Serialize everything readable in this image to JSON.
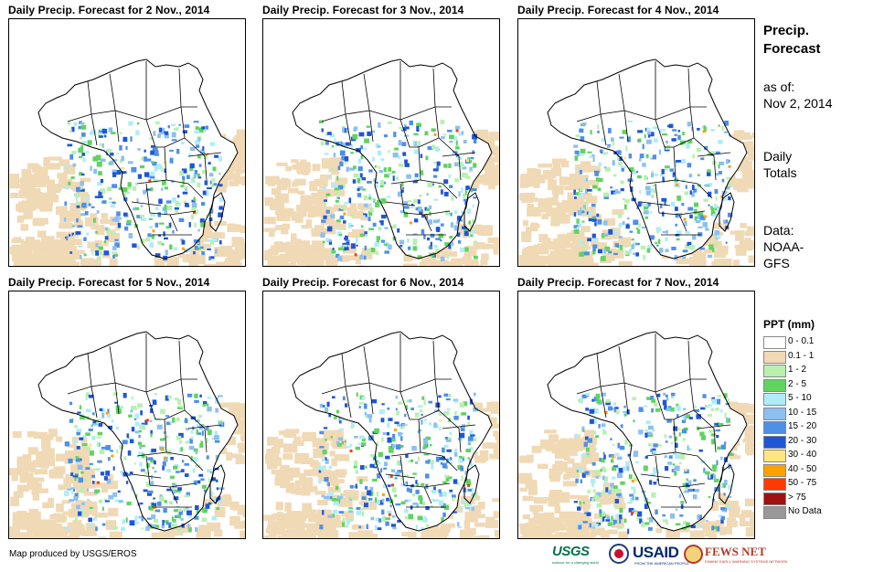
{
  "panels": [
    {
      "title": "Daily Precip. Forecast for 2 Nov., 2014"
    },
    {
      "title": "Daily Precip. Forecast for 3 Nov., 2014"
    },
    {
      "title": "Daily Precip. Forecast for 4 Nov., 2014"
    },
    {
      "title": "Daily Precip. Forecast for 5 Nov., 2014"
    },
    {
      "title": "Daily Precip. Forecast for 6 Nov., 2014"
    },
    {
      "title": "Daily Precip. Forecast for 7 Nov., 2014"
    }
  ],
  "sidebar": {
    "title_line1": "Precip.",
    "title_line2": "Forecast",
    "asof_label": "as of:",
    "asof_date": "Nov 2, 2014",
    "totals_line1": "Daily",
    "totals_line2": "Totals",
    "data_label": "Data:",
    "data_line1": "NOAA-",
    "data_line2": "GFS"
  },
  "legend": {
    "title": "PPT (mm)",
    "items": [
      {
        "label": "0 - 0.1",
        "color": "#ffffff"
      },
      {
        "label": "0.1 - 1",
        "color": "#f0d9b5"
      },
      {
        "label": "1 - 2",
        "color": "#b8f0b0"
      },
      {
        "label": "2 - 5",
        "color": "#5fd45f"
      },
      {
        "label": "5 - 10",
        "color": "#b0ecf8"
      },
      {
        "label": "10 - 15",
        "color": "#8cc0f0"
      },
      {
        "label": "15 - 20",
        "color": "#4e90e6"
      },
      {
        "label": "20 - 30",
        "color": "#1f56d6"
      },
      {
        "label": "30 - 40",
        "color": "#ffe680"
      },
      {
        "label": "40 - 50",
        "color": "#ffa200"
      },
      {
        "label": "50 - 75",
        "color": "#ff3a00"
      },
      {
        "label": "> 75",
        "color": "#a01010"
      },
      {
        "label": "No Data",
        "color": "#999999"
      }
    ]
  },
  "footer": {
    "credit": "Map produced by USGS/EROS",
    "logo_usgs": "USGS",
    "logo_usgs_sub": "science for a changing world",
    "logo_usaid": "USAID",
    "logo_usaid_sub": "FROM THE AMERICAN PEOPLE",
    "logo_fews": "FEWS NET",
    "logo_fews_sub": "FAMINE EARLY WARNING SYSTEMS NETWORK"
  }
}
